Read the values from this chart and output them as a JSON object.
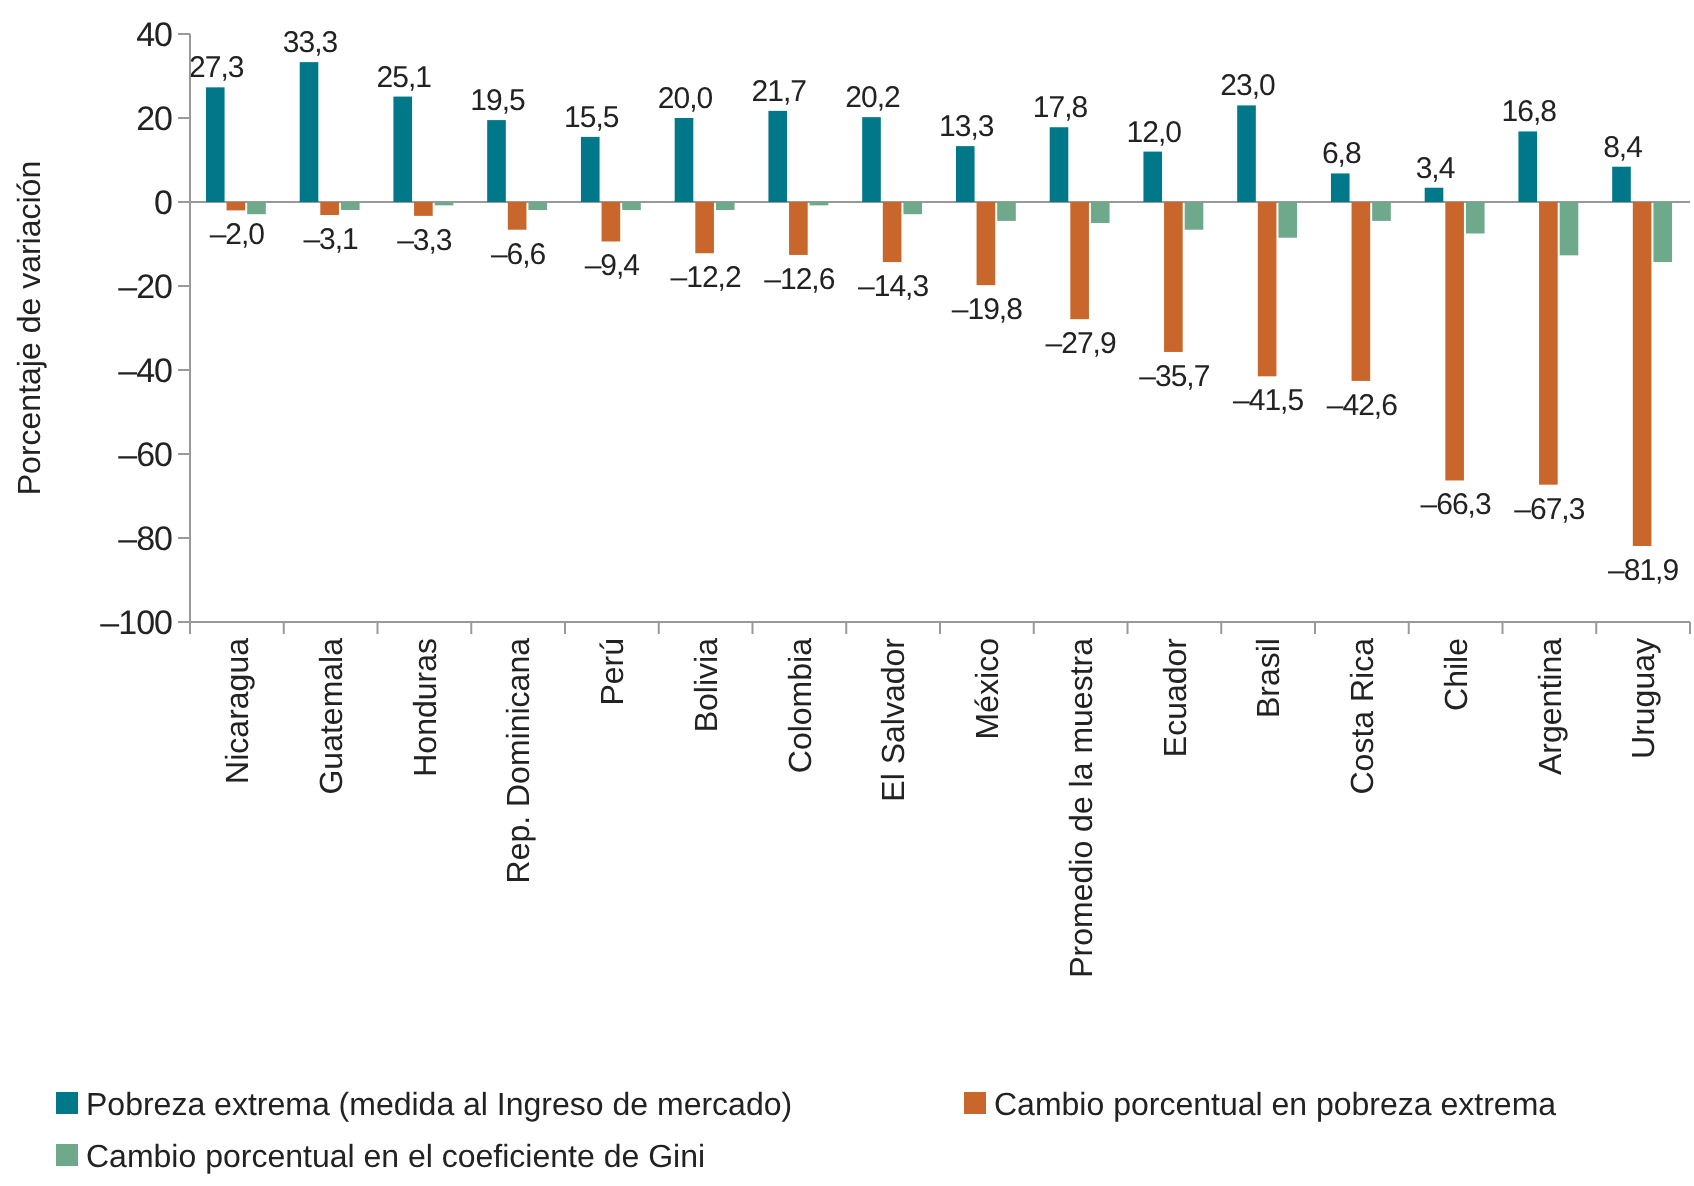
{
  "chart_data": {
    "type": "bar",
    "ylabel": "Porcentaje de variación",
    "categories": [
      "Nicaragua",
      "Guatemala",
      "Honduras",
      "Rep. Dominicana",
      "Perú",
      "Bolivia",
      "Colombia",
      "El Salvador",
      "México",
      "Promedio de la muestra",
      "Ecuador",
      "Brasil",
      "Costa Rica",
      "Chile",
      "Argentina",
      "Uruguay"
    ],
    "series": [
      {
        "name": "Pobreza extrema (medida al Ingreso de mercado)",
        "color": "#00788a",
        "values": [
          27.3,
          33.3,
          25.1,
          19.5,
          15.5,
          20.0,
          21.7,
          20.2,
          13.3,
          17.8,
          12.0,
          23.0,
          6.8,
          3.4,
          16.8,
          8.4
        ],
        "value_labels": [
          "27,3",
          "33,3",
          "25,1",
          "19,5",
          "15,5",
          "20,0",
          "21,7",
          "20,2",
          "13,3",
          "17,8",
          "12,0",
          "23,0",
          "6,8",
          "3,4",
          "16,8",
          "8,4"
        ]
      },
      {
        "name": "Cambio porcentual en pobreza extrema",
        "color": "#c8662b",
        "values": [
          -2.0,
          -3.1,
          -3.3,
          -6.6,
          -9.4,
          -12.2,
          -12.6,
          -14.3,
          -19.8,
          -27.9,
          -35.7,
          -41.5,
          -42.6,
          -66.3,
          -67.3,
          -81.9
        ],
        "value_labels": [
          "–2,0",
          "–3,1",
          "–3,3",
          "–6,6",
          "–9,4",
          "–12,2",
          "–12,6",
          "–14,3",
          "–19,8",
          "–27,9",
          "–35,7",
          "–41,5",
          "–42,6",
          "–66,3",
          "–67,3",
          "–81,9"
        ]
      },
      {
        "name": "Cambio porcentual en el coeficiente de Gini",
        "color": "#6fa98c",
        "values": [
          -2.9,
          -1.9,
          -0.8,
          -1.9,
          -1.9,
          -1.9,
          -0.8,
          -2.9,
          -4.5,
          -5.0,
          -6.6,
          -8.5,
          -4.5,
          -7.5,
          -12.7,
          -14.3
        ]
      }
    ],
    "ylim": [
      -100,
      40
    ],
    "yticks": [
      {
        "value": -100,
        "label": "–100"
      },
      {
        "value": -80,
        "label": "–80"
      },
      {
        "value": -60,
        "label": "–60"
      },
      {
        "value": -40,
        "label": "–40"
      },
      {
        "value": -20,
        "label": "–20"
      },
      0,
      20,
      40
    ],
    "ref_lines": [
      {
        "axis": "y",
        "value": 0,
        "color": "#999999"
      }
    ],
    "grid": false,
    "legend": "bottom"
  }
}
